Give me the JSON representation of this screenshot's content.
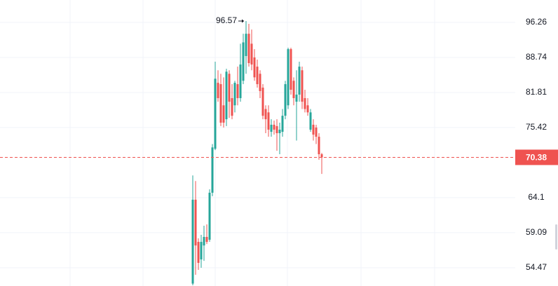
{
  "chart_data": {
    "type": "candlestick",
    "scale": "log",
    "ylim": [
      52.21,
      101.4
    ],
    "yticks": [
      96.26,
      88.74,
      81.81,
      75.42,
      64.1,
      59.09,
      54.47
    ],
    "grid": true,
    "up_color": "#26a69a",
    "down_color": "#ef5350",
    "last_price": 70.38,
    "last_price_label": "70.38",
    "max_label": 96.57,
    "series": {
      "open": [
        52.5,
        63.79,
        57.84,
        55.53,
        57.36,
        58.51,
        58.13,
        64.83,
        71.79,
        83.67,
        83.41,
        79.41,
        76.89,
        85.44,
        80.75,
        79.41,
        83.41,
        80.75,
        84.07,
        89.03,
        93.76,
        91.62,
        88.74,
        86.87,
        85.44,
        82.74,
        78.73,
        78.12,
        74.68,
        75.91,
        75.67,
        74.44,
        74.68,
        77.51,
        79.41,
        90.47,
        84.07,
        80.08,
        81.41,
        86.14,
        80.75,
        79.41,
        75.05,
        75.91,
        75.42,
        73.83,
        70.89
      ],
      "high": [
        67.49,
        66.62,
        58.32,
        58.8,
        60.05,
        60.24,
        65.34,
        72.59,
        87.88,
        86.14,
        85.44,
        84.74,
        86.43,
        86.14,
        83.41,
        84.07,
        86.87,
        91.62,
        93.76,
        96.57,
        95.95,
        94.69,
        90.47,
        88.31,
        86.14,
        83.41,
        79.41,
        79.41,
        76.89,
        76.65,
        76.89,
        76.28,
        78.73,
        84.07,
        90.76,
        90.76,
        84.74,
        86.14,
        87.88,
        86.87,
        82.34,
        80.75,
        78.73,
        76.89,
        75.91,
        74.44,
        71.11
      ],
      "low": [
        52.3,
        53.59,
        54.2,
        54.47,
        55.35,
        57.55,
        57.84,
        64.31,
        71.57,
        80.08,
        75.67,
        75.42,
        75.67,
        77.14,
        76.89,
        78.12,
        79.41,
        80.08,
        83.41,
        85.44,
        86.87,
        86.14,
        84.07,
        82.74,
        80.75,
        76.89,
        74.44,
        73.83,
        73.83,
        74.19,
        71.45,
        70.89,
        73.83,
        76.89,
        78.73,
        81.41,
        79.41,
        73.18,
        80.08,
        78.73,
        78.12,
        77.51,
        74.68,
        73.18,
        72.59,
        69.99,
        67.72
      ],
      "close": [
        63.79,
        57.36,
        55.09,
        57.84,
        58.51,
        57.84,
        64.83,
        72.02,
        84.47,
        80.75,
        76.28,
        76.28,
        85.86,
        80.08,
        77.51,
        83.67,
        80.75,
        87.3,
        91.9,
        93.76,
        87.59,
        87.3,
        84.74,
        83.41,
        82.08,
        77.51,
        76.89,
        75.05,
        75.91,
        75.05,
        74.44,
        75.05,
        77.51,
        83.41,
        90.47,
        82.34,
        80.75,
        81.41,
        86.87,
        80.08,
        78.73,
        78.12,
        78.12,
        74.19,
        73.83,
        70.89,
        70.38
      ]
    }
  }
}
